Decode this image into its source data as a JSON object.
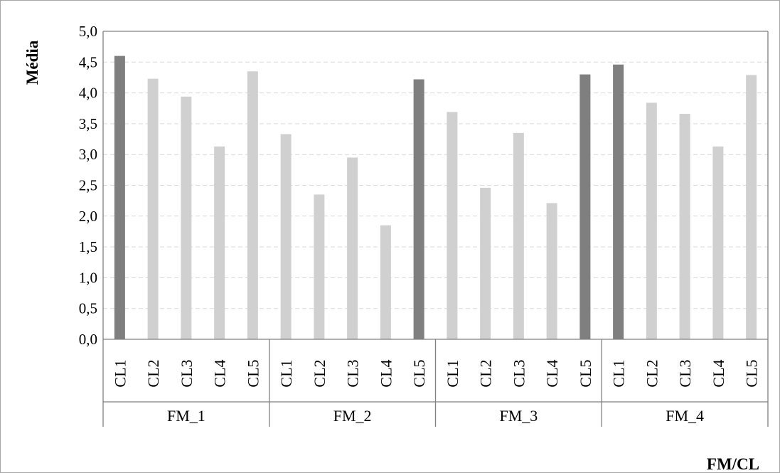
{
  "chart_data": {
    "type": "bar",
    "ylabel": "Média",
    "xlabel": "FM/CL",
    "ylim": [
      0,
      5
    ],
    "yticks": [
      "0,0",
      "0,5",
      "1,0",
      "1,5",
      "2,0",
      "2,5",
      "3,0",
      "3,5",
      "4,0",
      "4,5",
      "5,0"
    ],
    "grid": "horizontal-dashed",
    "groups": [
      {
        "name": "FM_1",
        "categories": [
          "CL1",
          "CL2",
          "CL3",
          "CL4",
          "CL5"
        ],
        "values": [
          4.6,
          4.23,
          3.94,
          3.13,
          4.35
        ],
        "highlight": [
          true,
          false,
          false,
          false,
          false
        ]
      },
      {
        "name": "FM_2",
        "categories": [
          "CL1",
          "CL2",
          "CL3",
          "CL4",
          "CL5"
        ],
        "values": [
          3.33,
          2.35,
          2.95,
          1.85,
          4.22
        ],
        "highlight": [
          false,
          false,
          false,
          false,
          true
        ]
      },
      {
        "name": "FM_3",
        "categories": [
          "CL1",
          "CL2",
          "CL3",
          "CL4",
          "CL5"
        ],
        "values": [
          3.69,
          2.46,
          3.35,
          2.21,
          4.3
        ],
        "highlight": [
          false,
          false,
          false,
          false,
          true
        ]
      },
      {
        "name": "FM_4",
        "categories": [
          "CL1",
          "CL2",
          "CL3",
          "CL4",
          "CL5"
        ],
        "values": [
          4.46,
          3.84,
          3.66,
          3.13,
          4.29
        ],
        "highlight": [
          true,
          false,
          false,
          false,
          false
        ]
      }
    ],
    "colors": {
      "highlight": "#7f7f7f",
      "normal": "#d0d0d0",
      "grid": "#d9d9d9",
      "axis": "#808080"
    }
  }
}
